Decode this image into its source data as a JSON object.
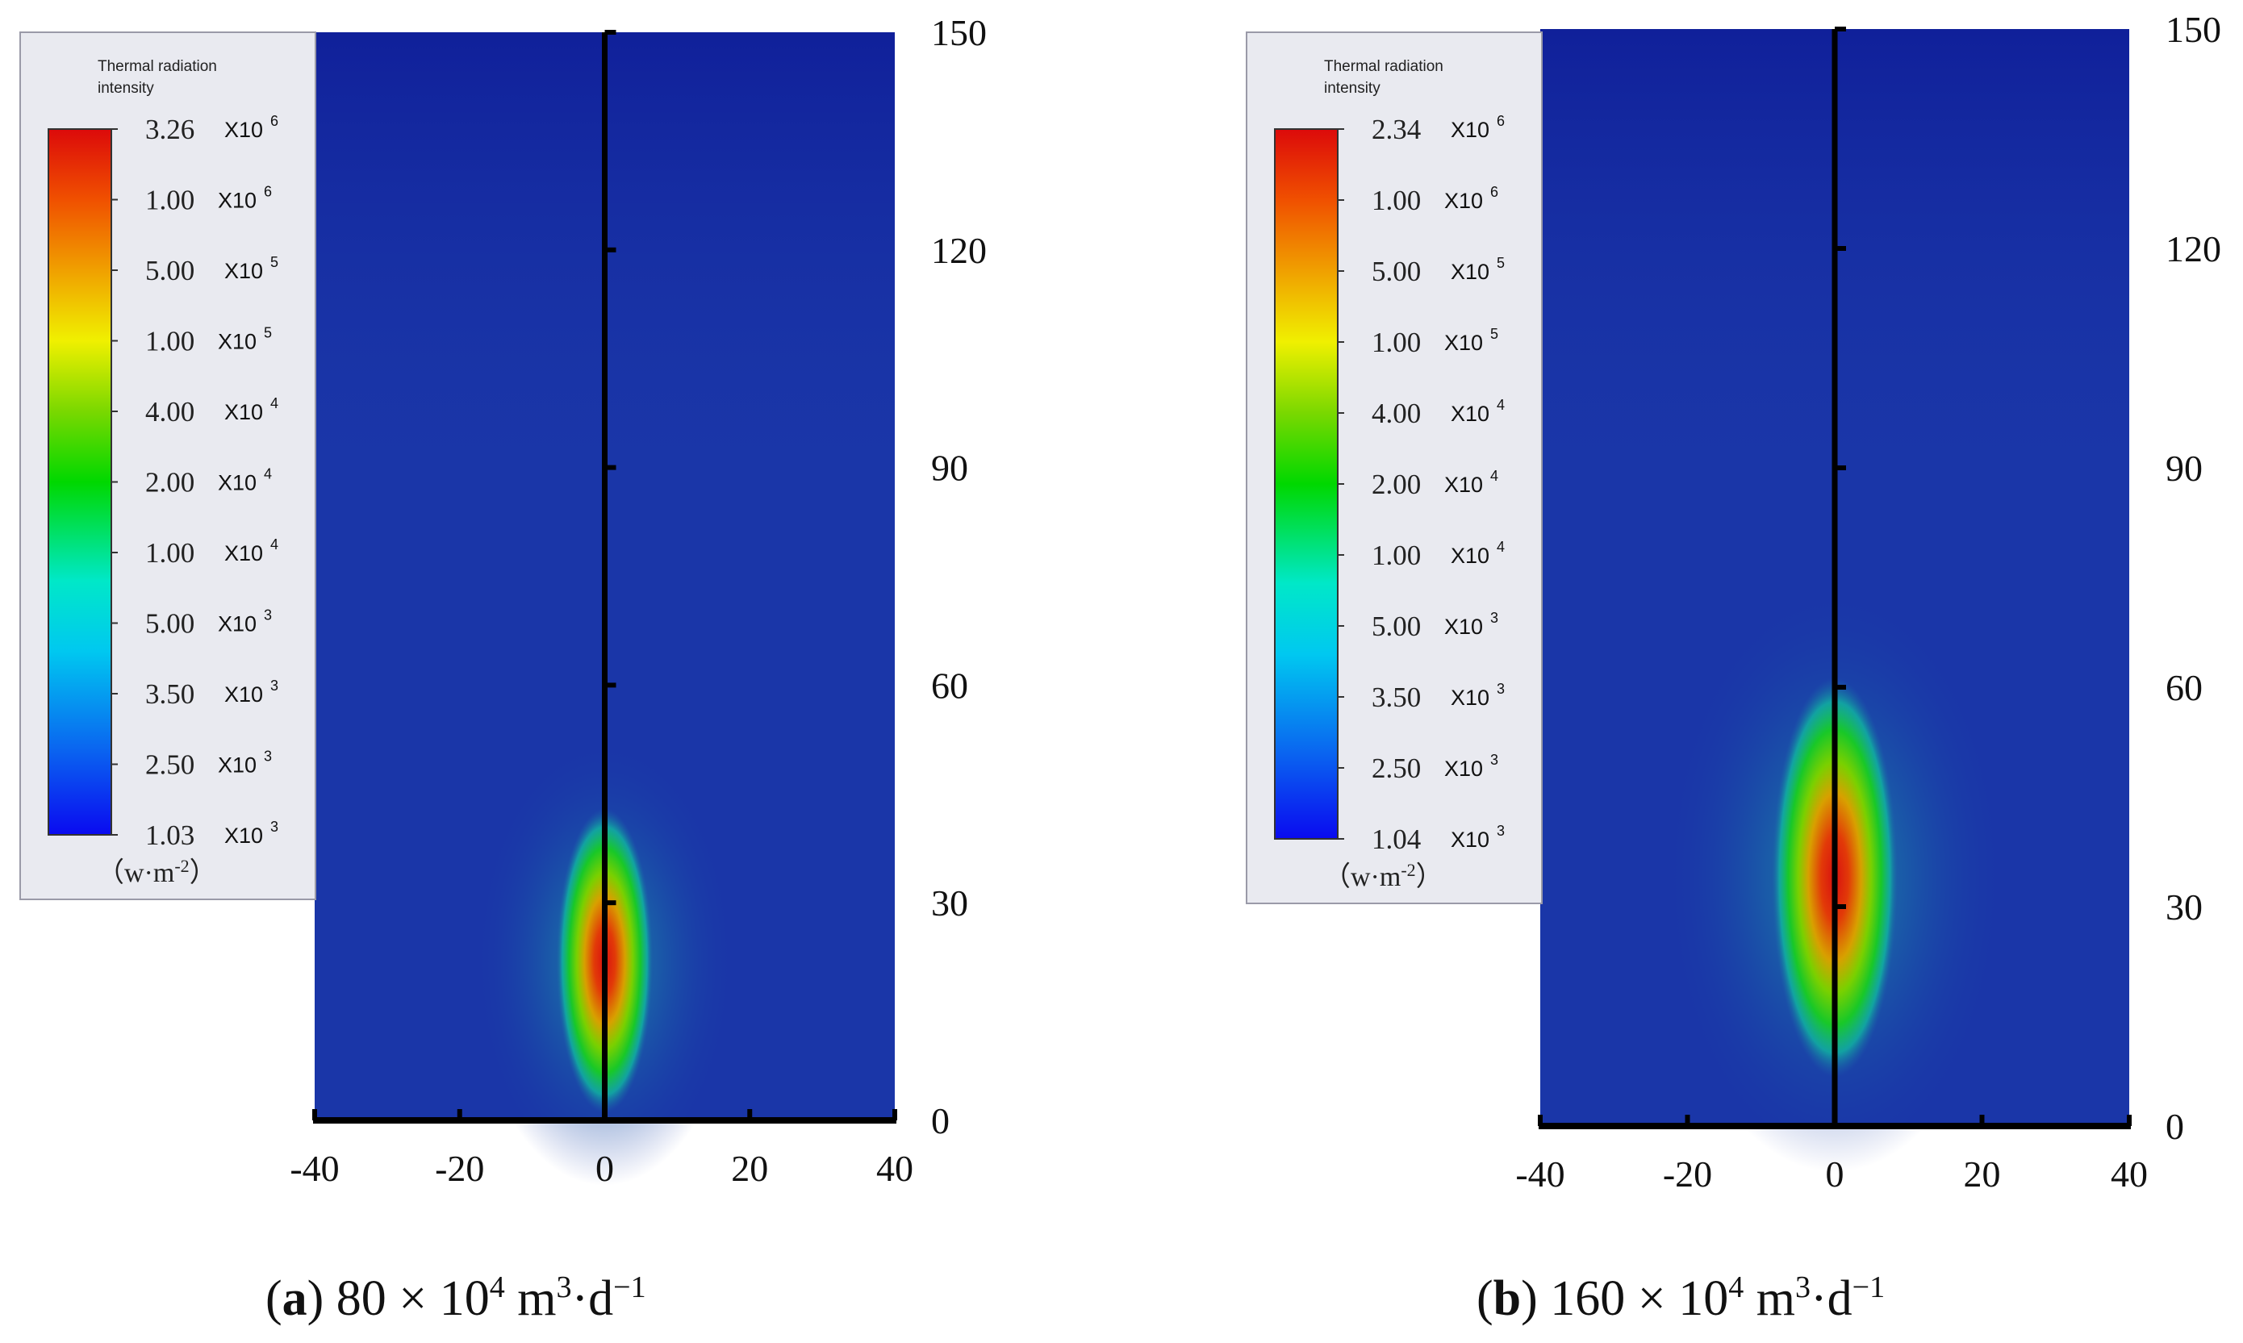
{
  "colors": {
    "background": "#1a36a8",
    "scale": [
      "#0a0af0",
      "#0a64f0",
      "#00c8f0",
      "#00e8c8",
      "#00d800",
      "#7ad800",
      "#f0f000",
      "#f0a000",
      "#f05000",
      "#dc0a0a"
    ],
    "axis": "#000000",
    "legend_panel": "#e9eaf0"
  },
  "chart_data": [
    {
      "type": "heatmap",
      "panel_letter": "a",
      "caption_text": "80 × 10",
      "caption_exp": "4",
      "caption_unit_m": " m",
      "caption_unit_m_exp": "3",
      "caption_unit_d": "·d",
      "caption_unit_d_exp": "−1",
      "legend_title_1": "Thermal radiation",
      "legend_title_2": "intensity",
      "legend_unit": "（w·m",
      "legend_unit_exp": "-2",
      "legend_unit_close": "）",
      "legend_levels": [
        {
          "value": "3.26",
          "mult": "X10",
          "exp": "6"
        },
        {
          "value": "1.00",
          "mult": "X10",
          "exp": "6"
        },
        {
          "value": "5.00",
          "mult": "X10",
          "exp": "5"
        },
        {
          "value": "1.00",
          "mult": "X10",
          "exp": "5"
        },
        {
          "value": "4.00",
          "mult": "X10",
          "exp": "4"
        },
        {
          "value": "2.00",
          "mult": "X10",
          "exp": "4"
        },
        {
          "value": "1.00",
          "mult": "X10",
          "exp": "4"
        },
        {
          "value": "5.00",
          "mult": "X10",
          "exp": "3"
        },
        {
          "value": "3.50",
          "mult": "X10",
          "exp": "3"
        },
        {
          "value": "2.50",
          "mult": "X10",
          "exp": "3"
        },
        {
          "value": "1.03",
          "mult": "X10",
          "exp": "3"
        }
      ],
      "x_ticks": [
        "-40",
        "-20",
        "0",
        "20",
        "40"
      ],
      "y_ticks": [
        "0",
        "30",
        "60",
        "90",
        "120",
        "150"
      ],
      "xlim": [
        -40,
        40
      ],
      "ylim": [
        0,
        150
      ],
      "flame_center_height": 22,
      "flame_half_length": 20,
      "flame_half_width": 3.5
    },
    {
      "type": "heatmap",
      "panel_letter": "b",
      "caption_text": "160 × 10",
      "caption_exp": "4",
      "caption_unit_m": " m",
      "caption_unit_m_exp": "3",
      "caption_unit_d": "·d",
      "caption_unit_d_exp": "−1",
      "legend_title_1": "Thermal radiation",
      "legend_title_2": "intensity",
      "legend_unit": "（w·m",
      "legend_unit_exp": "-2",
      "legend_unit_close": "）",
      "legend_levels": [
        {
          "value": "2.34",
          "mult": "X10",
          "exp": "6"
        },
        {
          "value": "1.00",
          "mult": "X10",
          "exp": "6"
        },
        {
          "value": "5.00",
          "mult": "X10",
          "exp": "5"
        },
        {
          "value": "1.00",
          "mult": "X10",
          "exp": "5"
        },
        {
          "value": "4.00",
          "mult": "X10",
          "exp": "4"
        },
        {
          "value": "2.00",
          "mult": "X10",
          "exp": "4"
        },
        {
          "value": "1.00",
          "mult": "X10",
          "exp": "4"
        },
        {
          "value": "5.00",
          "mult": "X10",
          "exp": "3"
        },
        {
          "value": "3.50",
          "mult": "X10",
          "exp": "3"
        },
        {
          "value": "2.50",
          "mult": "X10",
          "exp": "3"
        },
        {
          "value": "1.04",
          "mult": "X10",
          "exp": "3"
        }
      ],
      "x_ticks": [
        "-40",
        "-20",
        "0",
        "20",
        "40"
      ],
      "y_ticks": [
        "0",
        "30",
        "60",
        "90",
        "120",
        "150"
      ],
      "xlim": [
        -40,
        40
      ],
      "ylim": [
        0,
        150
      ],
      "flame_center_height": 34,
      "flame_half_length": 26,
      "flame_half_width": 4.5
    }
  ]
}
